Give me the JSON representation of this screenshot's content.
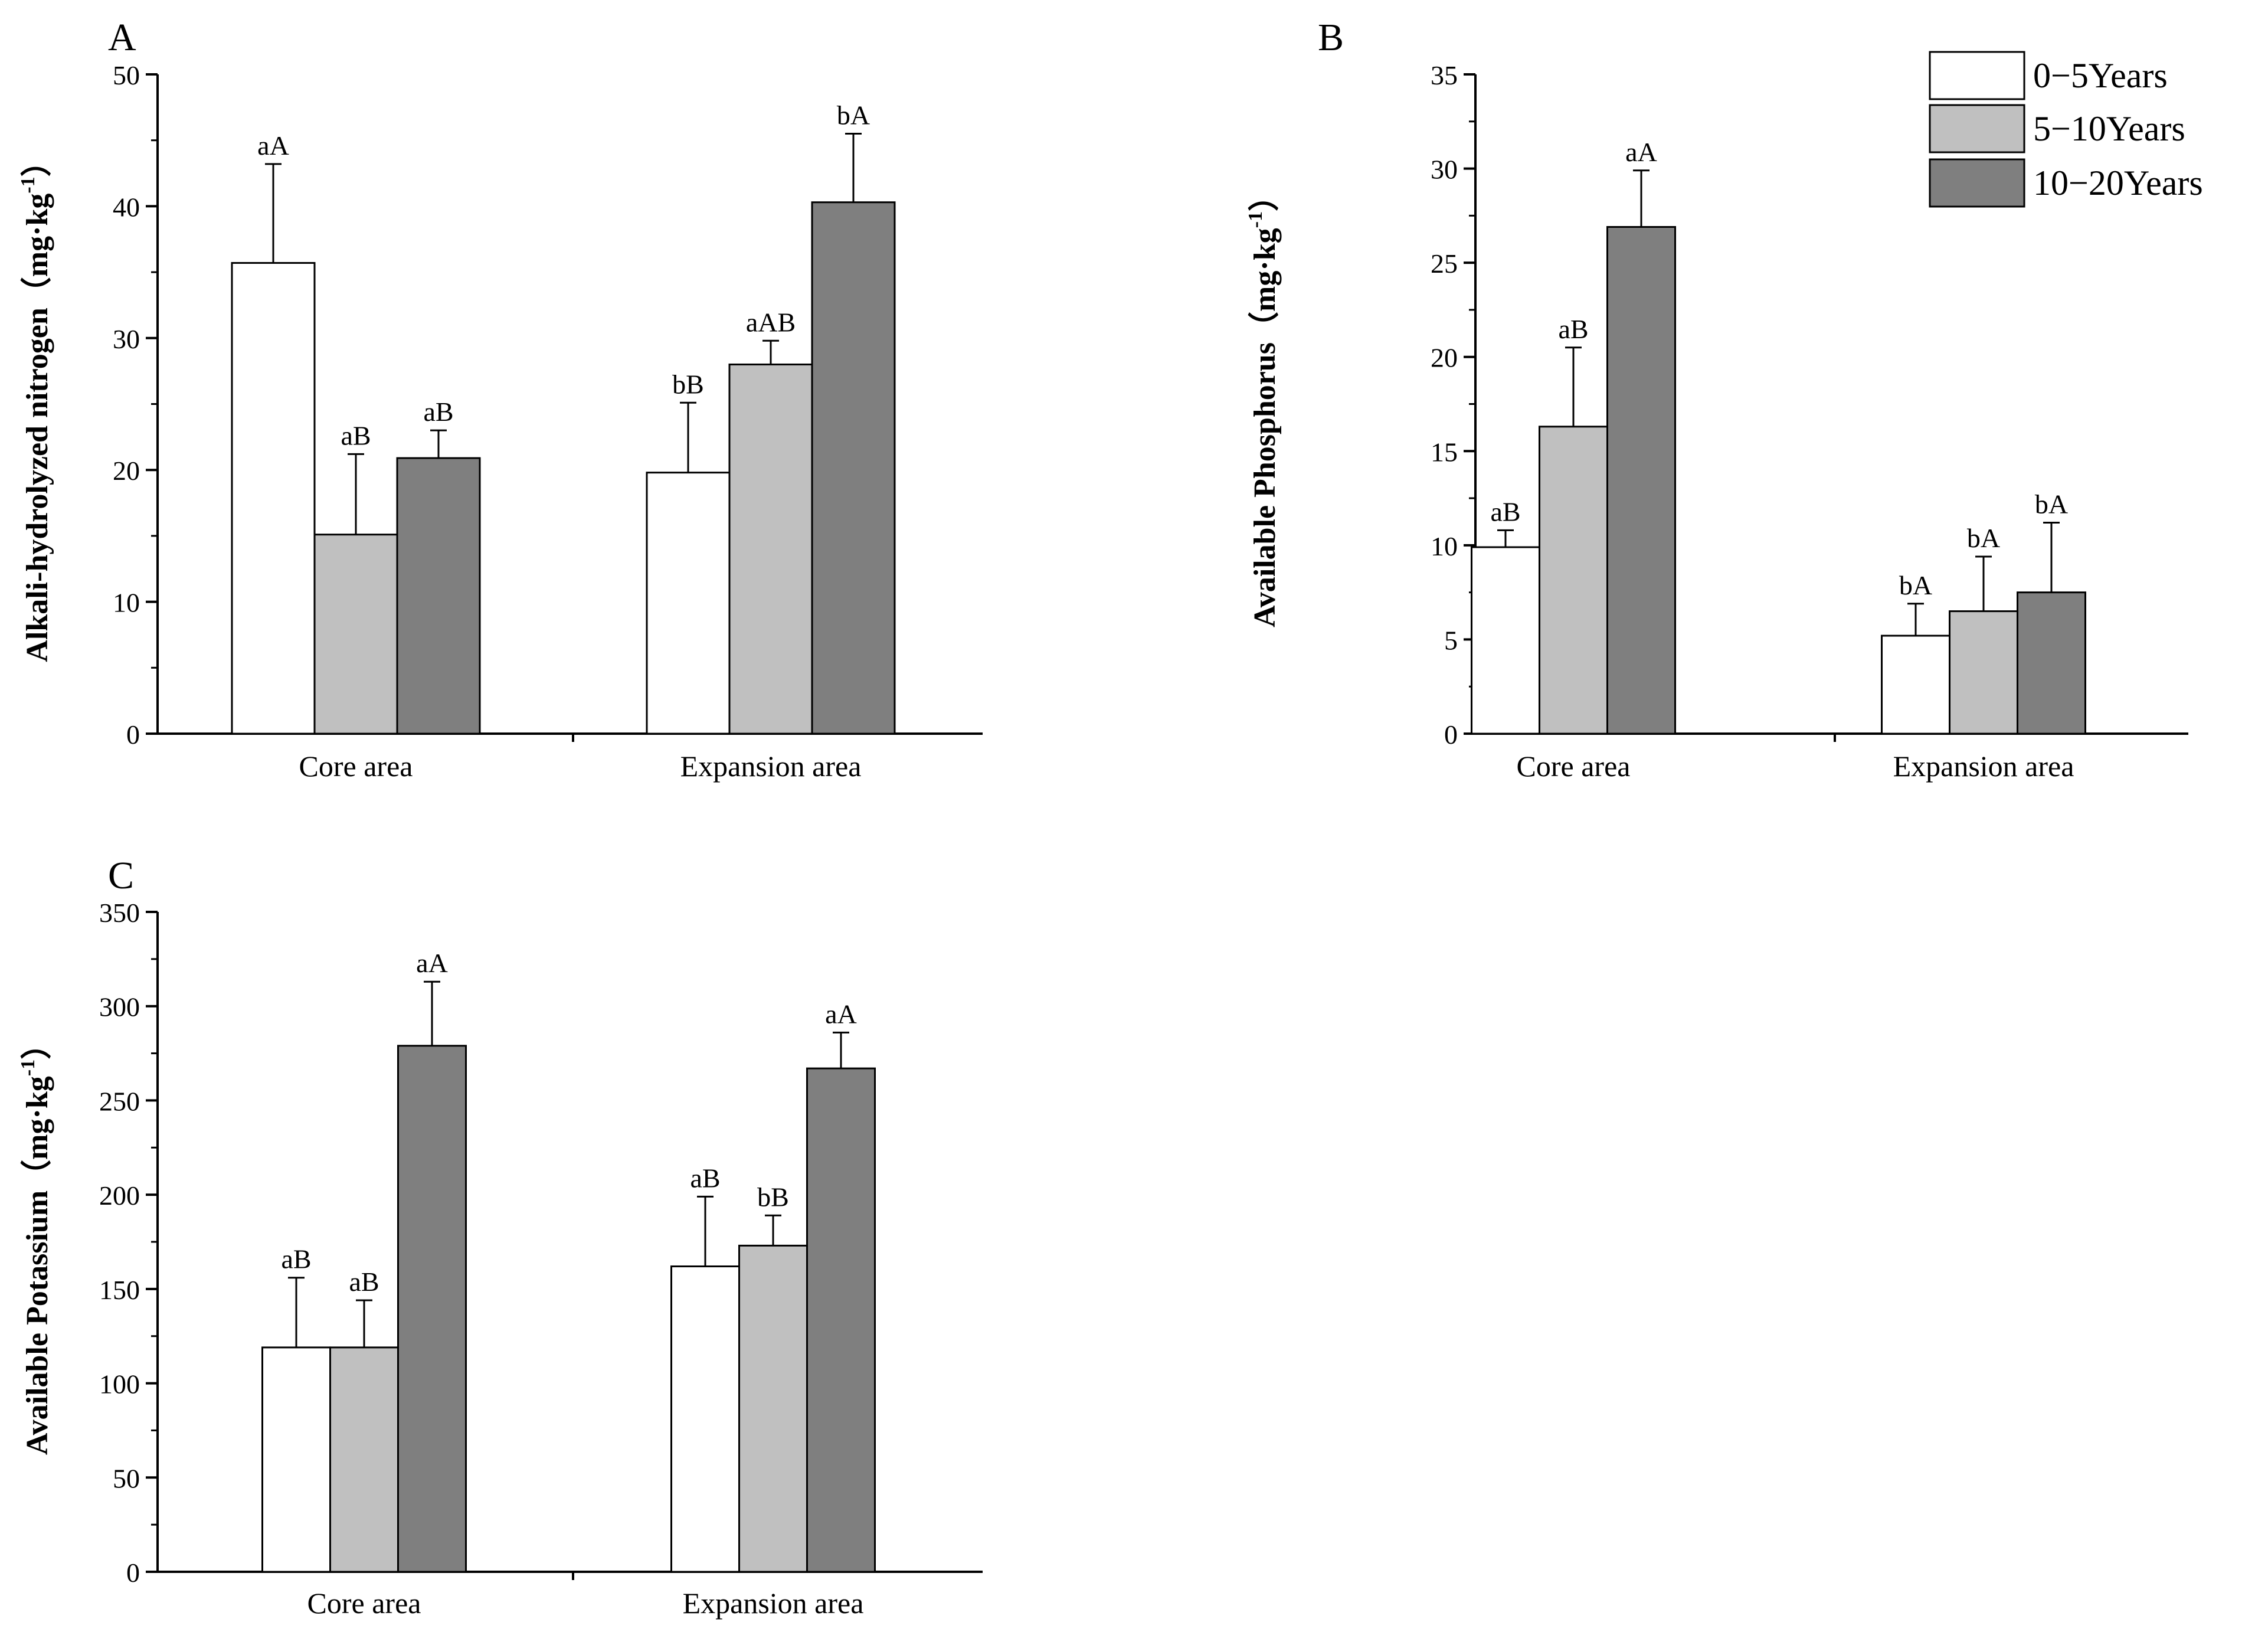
{
  "legend": {
    "entries": [
      "0−5Years",
      "5−10Years",
      "10−20Years"
    ]
  },
  "colors": {
    "series": [
      "#ffffff",
      "#c0c0c0",
      "#7f7f7f"
    ],
    "stroke": "#000000"
  },
  "chart_data": [
    {
      "panel_label": "A",
      "type": "bar",
      "categories": [
        "Core area",
        "Expansion area"
      ],
      "ylabel": "Alkali-hydrolyzed nitrogen（mg·kg",
      "ylabel_sup": "-1",
      "ylabel_close": "）",
      "ylim": [
        0,
        50
      ],
      "yticks": [
        0,
        10,
        20,
        30,
        40,
        50
      ],
      "series": [
        {
          "name": "0−5Years",
          "values": [
            35.7,
            19.8
          ],
          "errors": [
            7.5,
            5.3
          ],
          "letters": [
            "aA",
            "bB"
          ]
        },
        {
          "name": "5−10Years",
          "values": [
            15.1,
            28.0
          ],
          "errors": [
            6.1,
            1.8
          ],
          "letters": [
            "aB",
            "aAB"
          ]
        },
        {
          "name": "10−20Years",
          "values": [
            20.9,
            40.3
          ],
          "errors": [
            2.1,
            5.2
          ],
          "letters": [
            "aB",
            "bA"
          ]
        }
      ]
    },
    {
      "panel_label": "B",
      "type": "bar",
      "categories": [
        "Core area",
        "Expansion area"
      ],
      "ylabel": "Available Phosphorus（mg·kg",
      "ylabel_sup": "-1",
      "ylabel_close": "）",
      "ylim": [
        0,
        35
      ],
      "yticks": [
        0,
        5,
        10,
        15,
        20,
        25,
        30,
        35
      ],
      "legend_position": "top-right",
      "series": [
        {
          "name": "0−5Years",
          "values": [
            9.9,
            5.2
          ],
          "errors": [
            0.9,
            1.7
          ],
          "letters": [
            "aB",
            "bA"
          ]
        },
        {
          "name": "5−10Years",
          "values": [
            16.3,
            6.5
          ],
          "errors": [
            4.2,
            2.9
          ],
          "letters": [
            "aB",
            "bA"
          ]
        },
        {
          "name": "10−20Years",
          "values": [
            26.9,
            7.5
          ],
          "errors": [
            3.0,
            3.7
          ],
          "letters": [
            "aA",
            "bA"
          ]
        }
      ]
    },
    {
      "panel_label": "C",
      "type": "bar",
      "categories": [
        "Core area",
        "Expansion area"
      ],
      "ylabel": "Available Potassium（mg·kg",
      "ylabel_sup": "-1",
      "ylabel_close": "）",
      "ylim": [
        0,
        350
      ],
      "yticks": [
        0,
        50,
        100,
        150,
        200,
        250,
        300,
        350
      ],
      "series": [
        {
          "name": "0−5Years",
          "values": [
            119,
            162
          ],
          "errors": [
            37,
            37
          ],
          "letters": [
            "aB",
            "aB"
          ]
        },
        {
          "name": "5−10Years",
          "values": [
            119,
            173
          ],
          "errors": [
            25,
            16
          ],
          "letters": [
            "aB",
            "bB"
          ]
        },
        {
          "name": "10−20Years",
          "values": [
            279,
            267
          ],
          "errors": [
            34,
            19
          ],
          "letters": [
            "aA",
            "aA"
          ]
        }
      ]
    }
  ]
}
